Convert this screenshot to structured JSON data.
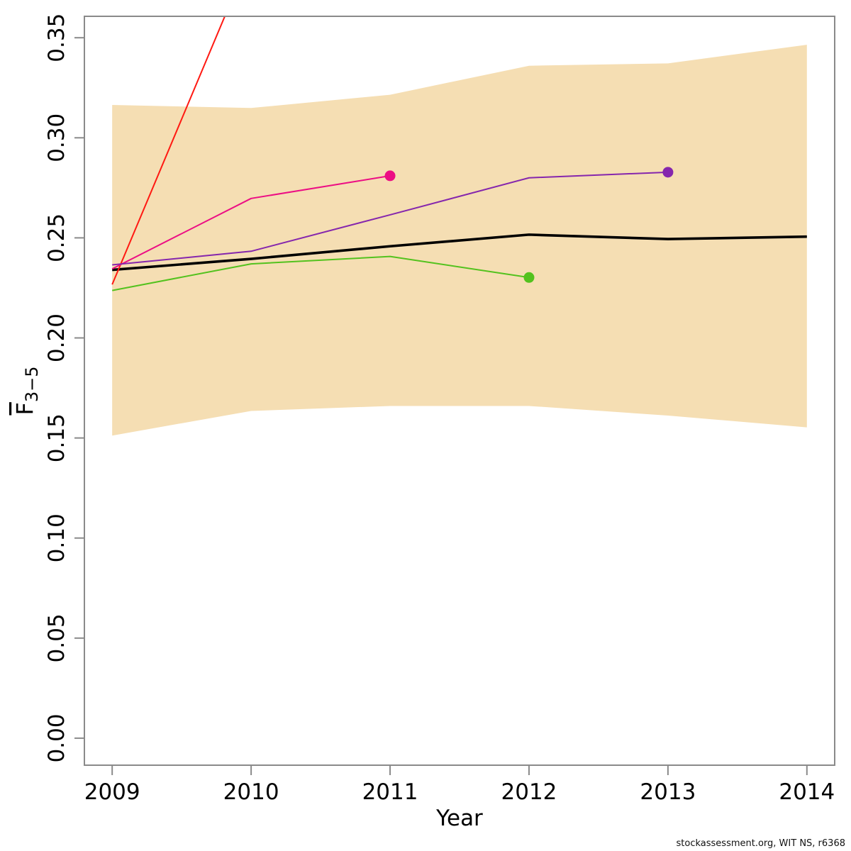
{
  "footer": {
    "credit": "stockassessment.org, WIT NS, r6368"
  },
  "chart_data": {
    "type": "line",
    "title": "",
    "xlabel": "Year",
    "ylabel": {
      "main": "F",
      "overbar": true,
      "subscript": "3−5"
    },
    "x_ticks": {
      "values": [
        2009,
        2010,
        2011,
        2012,
        2013,
        2014
      ],
      "labels": [
        "2009",
        "2010",
        "2011",
        "2012",
        "2013",
        "2014"
      ]
    },
    "y_ticks": {
      "values": [
        0.0,
        0.05,
        0.1,
        0.15,
        0.2,
        0.25,
        0.3,
        0.35
      ],
      "labels": [
        "0.00",
        "0.05",
        "0.10",
        "0.15",
        "0.20",
        "0.25",
        "0.30",
        "0.35"
      ]
    },
    "xlim": [
      2008.8,
      2014.2
    ],
    "ylim": [
      -0.0135,
      0.3607
    ],
    "grid": false,
    "legend": null,
    "axis_color": "#8a8a8a",
    "text_color": "#000000",
    "confidence_band": {
      "name": "confidence-band",
      "color": "#f5deb3",
      "x": [
        2009,
        2010,
        2011,
        2012,
        2013,
        2014
      ],
      "upper": [
        0.3164,
        0.3149,
        0.3215,
        0.336,
        0.3372,
        0.3465
      ],
      "lower": [
        0.1512,
        0.1635,
        0.166,
        0.166,
        0.1612,
        0.1553
      ]
    },
    "series": [
      {
        "name": "assessment-estimate",
        "color": "#000000",
        "line_width": 3.6,
        "endpoint_dot": false,
        "x": [
          2009,
          2010,
          2011,
          2012,
          2013,
          2014
        ],
        "y": [
          0.234,
          0.2395,
          0.2458,
          0.2516,
          0.2494,
          0.2506
        ]
      },
      {
        "name": "retro-peel-2010",
        "color": "#ff1912",
        "line_width": 2,
        "endpoint_dot": false,
        "x": [
          2009,
          2010
        ],
        "y": [
          0.2267,
          0.392
        ]
      },
      {
        "name": "retro-peel-2011",
        "color": "#ec0e84",
        "line_width": 2,
        "endpoint_dot": true,
        "x": [
          2009,
          2010,
          2011
        ],
        "y": [
          0.2345,
          0.2697,
          0.281
        ]
      },
      {
        "name": "retro-peel-2012",
        "color": "#53c21e",
        "line_width": 2,
        "endpoint_dot": true,
        "x": [
          2009,
          2010,
          2011,
          2012
        ],
        "y": [
          0.2237,
          0.237,
          0.2407,
          0.2302
        ]
      },
      {
        "name": "retro-peel-2013",
        "color": "#8526ad",
        "line_width": 2,
        "endpoint_dot": true,
        "x": [
          2009,
          2010,
          2011,
          2012,
          2013
        ],
        "y": [
          0.2365,
          0.2433,
          0.2615,
          0.28,
          0.2828
        ]
      }
    ]
  }
}
